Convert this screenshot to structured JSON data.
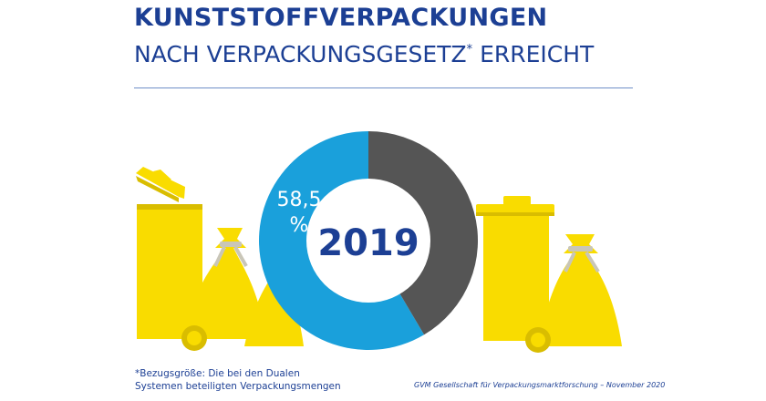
{
  "header": {
    "title_line1": "KUNSTSTOFFVERPACKUNGEN",
    "title_line2": "NACH VERPACKUNGSGESETZ",
    "title_line2_mark": "*",
    "title_line2_end": " ERREICHT"
  },
  "colors": {
    "brand_blue": "#1c3f94",
    "share_blue": "#1aa0db",
    "rest_grey": "#555555",
    "bin_yellow": "#f9dc00",
    "bin_dark_yellow": "#d9bd00",
    "tie_grey": "#c9c6b8"
  },
  "chart_data": {
    "type": "donut",
    "center_label": "2019",
    "slices": [
      {
        "value": 58.5,
        "label": "58,5",
        "unit": "%",
        "color": "#1aa0db"
      },
      {
        "value": 41.5,
        "color": "#555555"
      }
    ]
  },
  "illustration": {
    "left_icons": [
      "open-yellow-bin-icon",
      "tied-yellow-bag-icon",
      "small-yellow-bag-icon"
    ],
    "right_icons": [
      "closed-yellow-bin-icon",
      "tied-yellow-bag-icon"
    ]
  },
  "footer": {
    "footnote_line1": "*Bezugsgröße: Die bei den Dualen",
    "footnote_line2": " Systemen beteiligten Verpackungsmengen",
    "source": "GVM Gesellschaft für Verpackungsmarktforschung  – November 2020"
  }
}
